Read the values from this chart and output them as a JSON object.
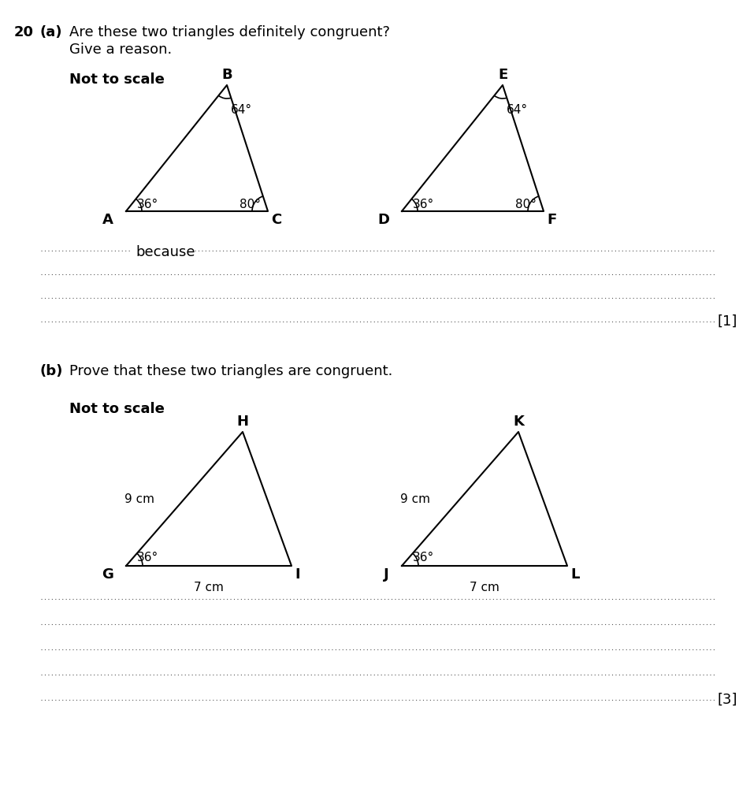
{
  "bg_color": "#ffffff",
  "q20_label": "20",
  "qa_label": "(a)",
  "qb_label": "(b)",
  "qa_line1": "Are these two triangles definitely congruent?",
  "qa_line2": "Give a reason.",
  "qb_text": "Prove that these two triangles are congruent.",
  "not_to_scale": "Not to scale",
  "tri1_angles": {
    "A": "36°",
    "B": "64°",
    "C": "80°"
  },
  "tri1_labels": {
    "A": "A",
    "B": "B",
    "C": "C"
  },
  "tri2_labels": {
    "D": "D",
    "E": "E",
    "F": "F"
  },
  "tri2_angles": {
    "D": "36°",
    "E": "64°",
    "F": "80°"
  },
  "tri3_labels": {
    "G": "G",
    "H": "H",
    "I": "I"
  },
  "tri3_angles": {
    "G": "36°"
  },
  "tri3_sides": {
    "GH": "9 cm",
    "GI": "7 cm"
  },
  "tri4_labels": {
    "J": "J",
    "K": "K",
    "L": "L"
  },
  "tri4_angles": {
    "J": "36°"
  },
  "tri4_sides": {
    "JK": "9 cm",
    "JL": "7 cm"
  },
  "mark_a": "[1]",
  "mark_b": "[3]",
  "because_text": "because"
}
